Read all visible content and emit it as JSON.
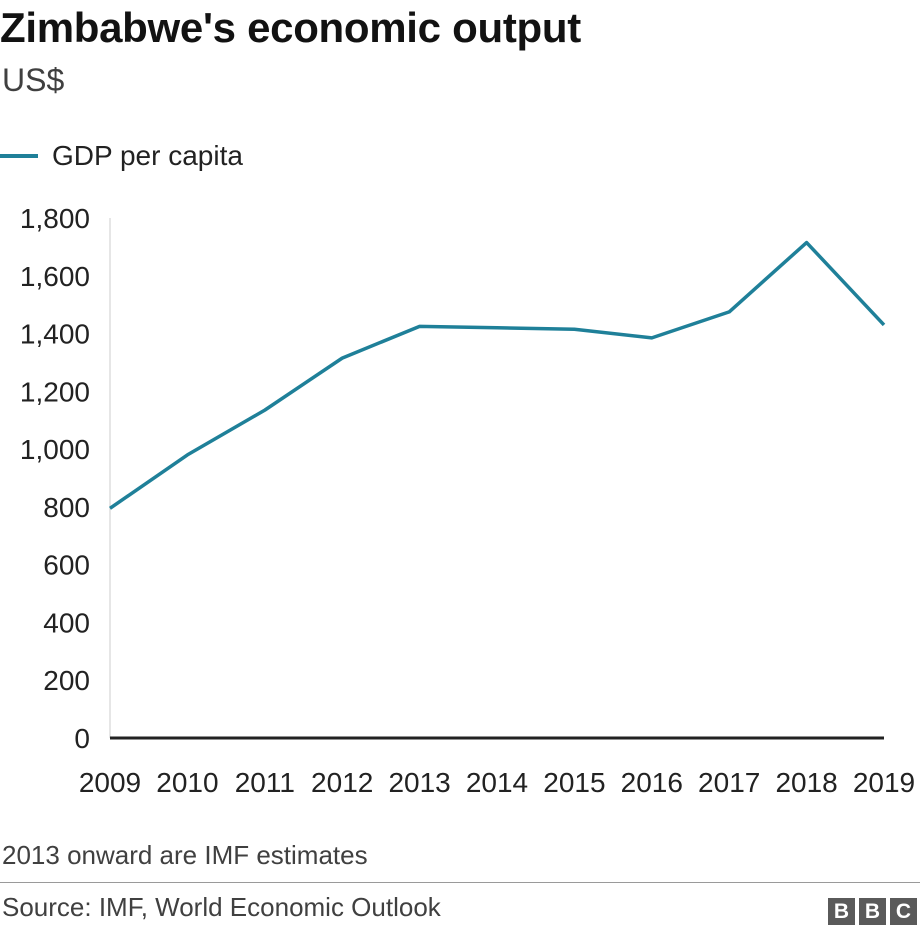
{
  "title": "Zimbabwe's economic output",
  "subtitle": "US$",
  "legend": {
    "label": "GDP per capita",
    "color": "#1f8099"
  },
  "note": "2013 onward are IMF estimates",
  "source": "Source: IMF, World Economic Outlook",
  "logo": [
    "B",
    "B",
    "C"
  ],
  "chart_data": {
    "type": "line",
    "title": "Zimbabwe's economic output",
    "subtitle": "US$",
    "xlabel": "",
    "ylabel": "",
    "x": [
      2009,
      2010,
      2011,
      2012,
      2013,
      2014,
      2015,
      2016,
      2017,
      2018,
      2019
    ],
    "x_tick_labels": [
      "2009",
      "2010",
      "2011",
      "2012",
      "2013",
      "2014",
      "2015",
      "2016",
      "2017",
      "2018",
      "2019"
    ],
    "y_tick_labels": [
      "0",
      "200",
      "400",
      "600",
      "800",
      "1,000",
      "1,200",
      "1,400",
      "1,600",
      "1,800"
    ],
    "ylim": [
      0,
      1800
    ],
    "y_ticks": [
      0,
      200,
      400,
      600,
      800,
      1000,
      1200,
      1400,
      1600,
      1800
    ],
    "grid": false,
    "legend_position": "top-left",
    "series": [
      {
        "name": "GDP per capita",
        "color": "#1f8099",
        "values": [
          795,
          980,
          1135,
          1315,
          1425,
          1420,
          1415,
          1385,
          1475,
          1715,
          1430
        ]
      }
    ]
  }
}
